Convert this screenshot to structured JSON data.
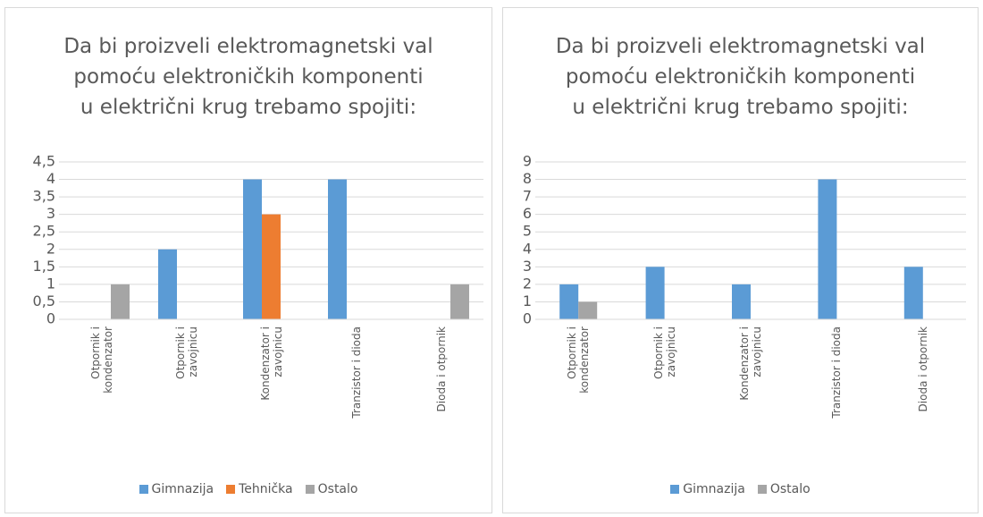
{
  "chart_data": [
    {
      "type": "bar",
      "title": "Da bi proizveli elektromagnetski val\npomoću elektroničkih komponenti\nu električni krug trebamo spojiti:",
      "categories": [
        "Otpornik i kondenzator",
        "Otpornik i zavojnicu",
        "Kondenzator i zavojnicu",
        "Tranzistor i dioda",
        "Dioda i otpornik"
      ],
      "series": [
        {
          "name": "Gimnazija",
          "color": "#5b9bd5",
          "values": [
            0,
            2,
            4,
            4,
            0
          ]
        },
        {
          "name": "Tehnička",
          "color": "#ed7d31",
          "values": [
            0,
            0,
            3,
            0,
            0
          ]
        },
        {
          "name": "Ostalo",
          "color": "#a5a5a5",
          "values": [
            1,
            0,
            0,
            0,
            1
          ]
        }
      ],
      "ylim": [
        0,
        4.5
      ],
      "yticks": [
        0,
        {
          "value": 0.5,
          "label": "0,5"
        },
        1,
        {
          "value": 1.5,
          "label": "1,5"
        },
        2,
        {
          "value": 2.5,
          "label": "2,5"
        },
        3,
        {
          "value": 3.5,
          "label": "3,5"
        },
        4,
        {
          "value": 4.5,
          "label": "4,5"
        }
      ],
      "grid": true,
      "legend": "bottom"
    },
    {
      "type": "bar",
      "title": "Da bi proizveli elektromagnetski val\npomoću elektroničkih komponenti\nu električni krug trebamo spojiti:",
      "categories": [
        "Otpornik i kondenzator",
        "Otpornik i zavojnicu",
        "Kondenzator i zavojnicu",
        "Tranzistor i dioda",
        "Dioda i otpornik"
      ],
      "series": [
        {
          "name": "Gimnazija",
          "color": "#5b9bd5",
          "values": [
            2,
            3,
            2,
            8,
            3
          ]
        },
        {
          "name": "Ostalo",
          "color": "#a5a5a5",
          "values": [
            1,
            0,
            0,
            0,
            0
          ]
        }
      ],
      "ylim": [
        0,
        9
      ],
      "yticks": [
        0,
        1,
        2,
        3,
        4,
        5,
        6,
        7,
        8,
        9
      ],
      "grid": true,
      "legend": "bottom"
    }
  ]
}
